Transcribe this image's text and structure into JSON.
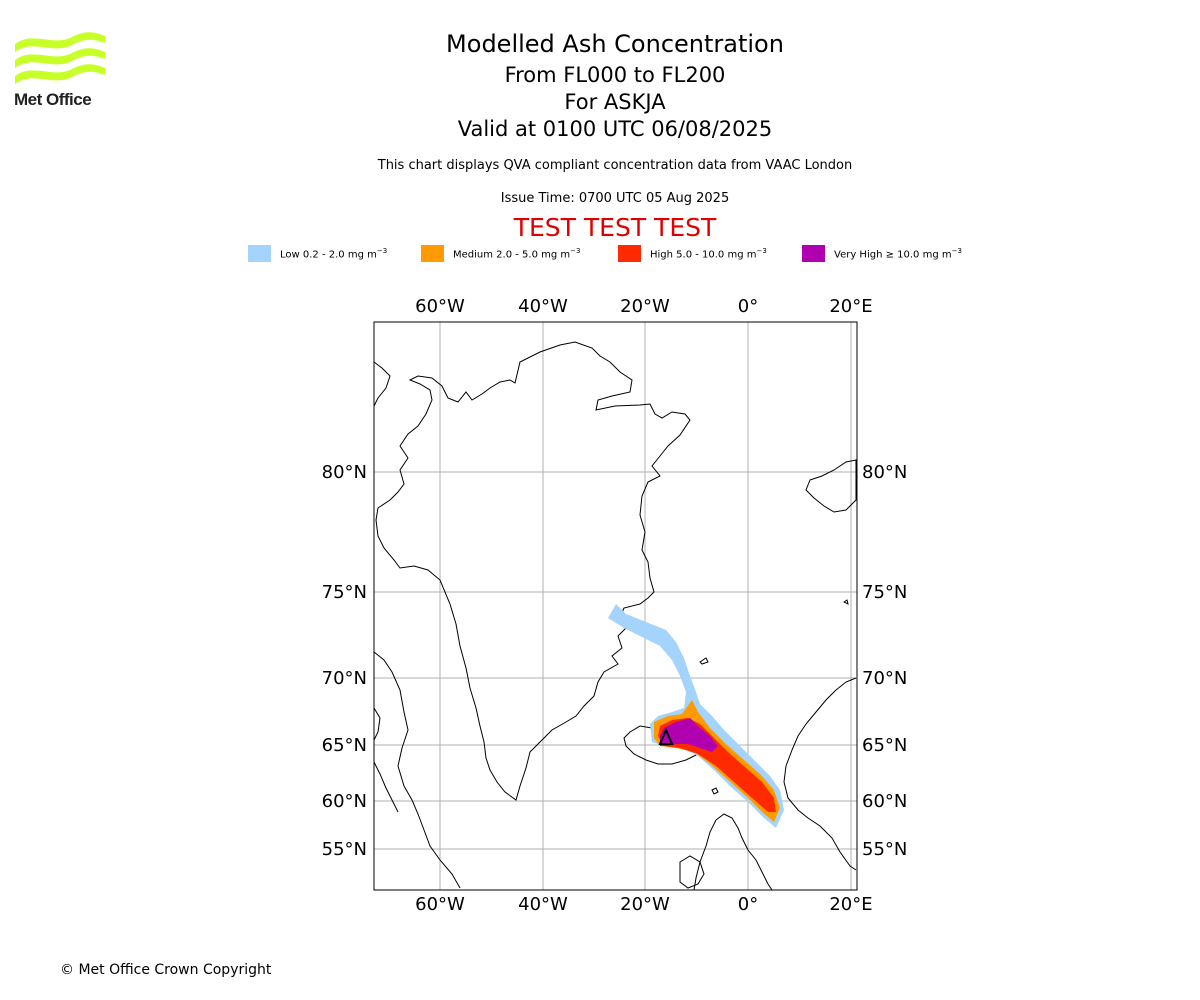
{
  "header": {
    "logo_text": "Met Office",
    "title": "Modelled Ash Concentration",
    "subtitle_levels": "From FL000 to FL200",
    "subtitle_volcano": "For ASKJA",
    "subtitle_valid": "Valid at 0100 UTC 06/08/2025",
    "description": "This chart displays QVA compliant concentration data from VAAC London",
    "issue_time": "Issue Time: 0700 UTC 05 Aug 2025",
    "test_banner": "TEST TEST TEST"
  },
  "legend": [
    {
      "label": "Low 0.2 - 2.0 mg m",
      "unit_sup": "−3",
      "color": "#a4d4fc"
    },
    {
      "label": "Medium 2.0 - 5.0 mg m",
      "unit_sup": "−3",
      "color": "#ff9a00"
    },
    {
      "label": "High 5.0 - 10.0 mg m",
      "unit_sup": "−3",
      "color": "#ff2a00"
    },
    {
      "label": "Very High  ≥  10.0 mg m",
      "unit_sup": "−3",
      "color": "#b000b0"
    }
  ],
  "map": {
    "lon_ticks": [
      "60°W",
      "40°W",
      "20°W",
      "0°",
      "20°E"
    ],
    "lat_ticks": [
      "80°N",
      "75°N",
      "70°N",
      "65°N",
      "60°N",
      "55°N"
    ],
    "volcano_marker": "triangle",
    "colors": {
      "grid": "#b0b0b0",
      "coast": "#000000"
    }
  },
  "footer": {
    "copyright": "© Met Office Crown Copyright"
  }
}
